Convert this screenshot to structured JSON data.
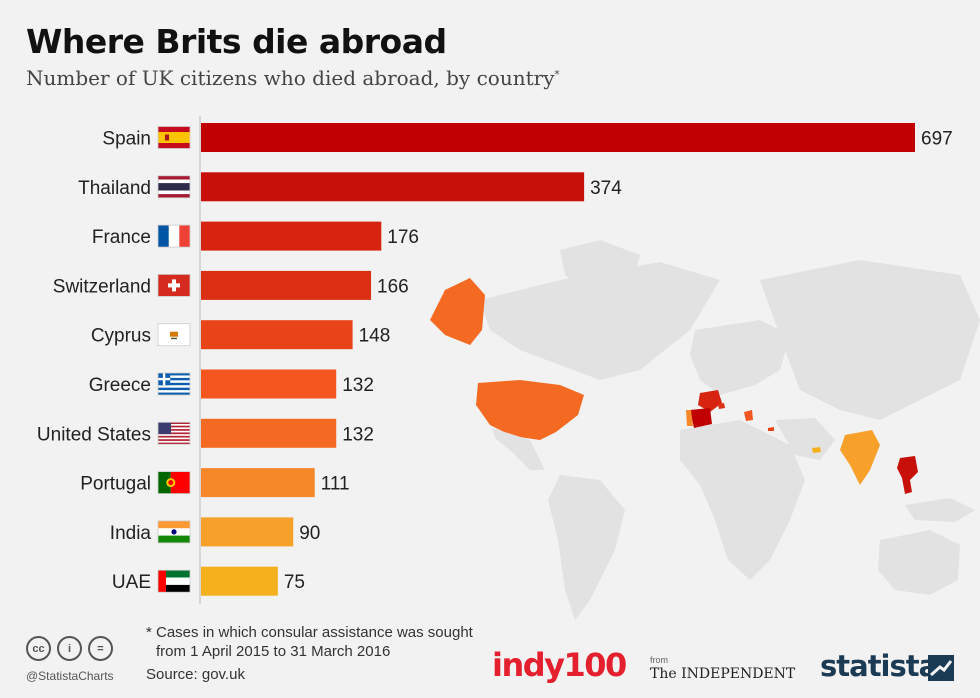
{
  "header": {
    "title": "Where Brits die abroad",
    "subtitle": "Number of UK citizens who died abroad, by country",
    "subtitle_mark": "*"
  },
  "chart_data": {
    "type": "bar",
    "orientation": "horizontal",
    "categories": [
      "Spain",
      "Thailand",
      "France",
      "Switzerland",
      "Cyprus",
      "Greece",
      "United States",
      "Portugal",
      "India",
      "UAE"
    ],
    "values": [
      697,
      374,
      176,
      166,
      148,
      132,
      132,
      111,
      90,
      75
    ],
    "colors": [
      "#c00000",
      "#c8100a",
      "#d62410",
      "#dc3015",
      "#e84418",
      "#f55620",
      "#f56a22",
      "#f7882a",
      "#f7a02a",
      "#f5b01e"
    ],
    "xlim": [
      0,
      697
    ],
    "grid": false,
    "flags": [
      "spain-flag-icon",
      "thailand-flag-icon",
      "france-flag-icon",
      "switzerland-flag-icon",
      "cyprus-flag-icon",
      "greece-flag-icon",
      "united-states-flag-icon",
      "portugal-flag-icon",
      "india-flag-icon",
      "uae-flag-icon"
    ]
  },
  "footer": {
    "note_line1": "* Cases in which consular assistance was sought",
    "note_line2": "from 1 April 2015 to 31 March 2016",
    "source": "Source: gov.uk",
    "handle": "@StatistaCharts",
    "cc_icons": [
      "cc",
      "i",
      "="
    ],
    "logos": {
      "indy": "indy100",
      "from": "from",
      "independent": "The INDEPENDENT",
      "statista": "statista"
    }
  }
}
